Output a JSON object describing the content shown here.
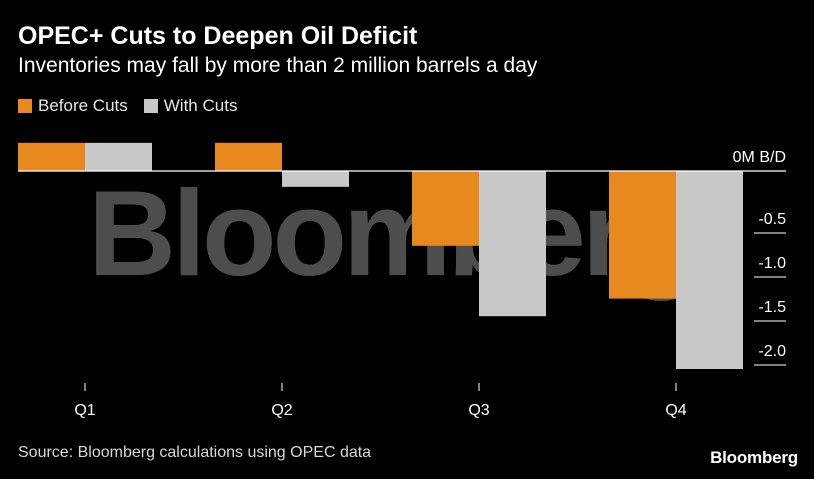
{
  "header": {
    "title": "OPEC+ Cuts to Deepen Oil Deficit",
    "subtitle": "Inventories may fall by more than 2 million barrels a day"
  },
  "legend": {
    "items": [
      {
        "label": "Before Cuts",
        "color": "#e8891f"
      },
      {
        "label": "With Cuts",
        "color": "#c8c8c8"
      }
    ]
  },
  "watermark": "Bloomberg",
  "footer": {
    "source": "Source: Bloomberg calculations using OPEC data",
    "brand": "Bloomberg"
  },
  "chart_data": {
    "type": "bar",
    "categories": [
      "Q1",
      "Q2",
      "Q3",
      "Q4"
    ],
    "series": [
      {
        "name": "Before Cuts",
        "values": [
          0.32,
          0.32,
          -0.85,
          -1.45
        ],
        "color": "#e8891f"
      },
      {
        "name": "With Cuts",
        "values": [
          0.32,
          -0.18,
          -1.65,
          -2.25
        ],
        "color": "#c8c8c8"
      }
    ],
    "yticks": [
      {
        "value": 0,
        "label": "0M B/D"
      },
      {
        "value": -0.5,
        "label": "-0.5"
      },
      {
        "value": -1.0,
        "label": "-1.0"
      },
      {
        "value": -1.5,
        "label": "-1.5"
      },
      {
        "value": -2.0,
        "label": "-2.0"
      }
    ],
    "ylim": [
      -2.25,
      0.32
    ],
    "y_axis_side": "right",
    "grid": false,
    "legend_position": "top-left"
  }
}
